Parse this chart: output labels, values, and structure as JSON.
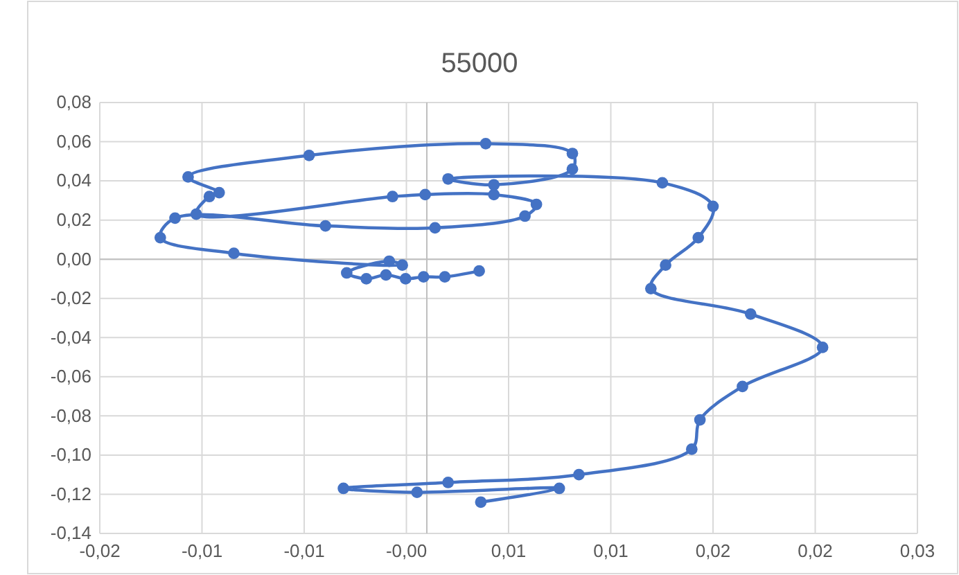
{
  "chart_data": {
    "type": "line",
    "title": "55000",
    "line_style": "solid",
    "marker": "circle",
    "grid": true,
    "xlim": [
      -0.02,
      0.03
    ],
    "ylim": [
      -0.14,
      0.08
    ],
    "xticks": [
      {
        "value": -0.02,
        "label": "-0,02"
      },
      {
        "value": -0.01375,
        "label": "-0,01"
      },
      {
        "value": -0.0075,
        "label": "-0,01"
      },
      {
        "value": -0.00125,
        "label": "-0,00"
      },
      {
        "value": 0.005,
        "label": "0,01"
      },
      {
        "value": 0.01125,
        "label": "0,01"
      },
      {
        "value": 0.0175,
        "label": "0,02"
      },
      {
        "value": 0.02375,
        "label": "0,02"
      },
      {
        "value": 0.03,
        "label": "0,03"
      }
    ],
    "yticks": [
      {
        "value": -0.14,
        "label": "-0,14"
      },
      {
        "value": -0.12,
        "label": "-0,12"
      },
      {
        "value": -0.1,
        "label": "-0,10"
      },
      {
        "value": -0.08,
        "label": "-0,08"
      },
      {
        "value": -0.06,
        "label": "-0,06"
      },
      {
        "value": -0.04,
        "label": "-0,04"
      },
      {
        "value": -0.02,
        "label": "-0,02"
      },
      {
        "value": 0,
        "label": "0,00"
      },
      {
        "value": 0.02,
        "label": "0,02"
      },
      {
        "value": 0.04,
        "label": "0,04"
      },
      {
        "value": 0.06,
        "label": "0,06"
      },
      {
        "value": 0.08,
        "label": "0,08"
      }
    ],
    "series": [
      {
        "color": "#4472c4",
        "x": [
          0.0032,
          0.0011,
          -0.0002,
          -0.0013,
          -0.0025,
          -0.0037,
          -0.0049,
          -0.0023,
          -0.0015,
          -0.0118,
          -0.0163,
          -0.0154,
          -0.0062,
          0.0005,
          0.006,
          0.0067,
          0.0041,
          -0.0001,
          -0.0021,
          -0.0141,
          -0.0133,
          -0.0127,
          -0.0146,
          -0.0072,
          0.0036,
          0.0089,
          0.0089,
          0.0041,
          0.0013,
          0.0144,
          0.0175,
          0.0166,
          0.0146,
          0.0137,
          0.0198,
          0.0242,
          0.0193,
          0.0167,
          0.0162,
          0.0093,
          0.0013,
          -0.0051,
          -0.0006,
          0.0081,
          0.0033
        ],
        "values": [
          -0.006,
          -0.009,
          -0.009,
          -0.01,
          -0.008,
          -0.01,
          -0.007,
          -0.001,
          -0.003,
          0.003,
          0.011,
          0.021,
          0.017,
          0.016,
          0.022,
          0.028,
          0.033,
          0.033,
          0.032,
          0.023,
          0.032,
          0.034,
          0.042,
          0.053,
          0.059,
          0.054,
          0.046,
          0.038,
          0.041,
          0.039,
          0.027,
          0.011,
          -0.003,
          -0.015,
          -0.028,
          -0.045,
          -0.065,
          -0.082,
          -0.097,
          -0.11,
          -0.114,
          -0.117,
          -0.119,
          -0.117,
          -0.124
        ]
      }
    ]
  }
}
